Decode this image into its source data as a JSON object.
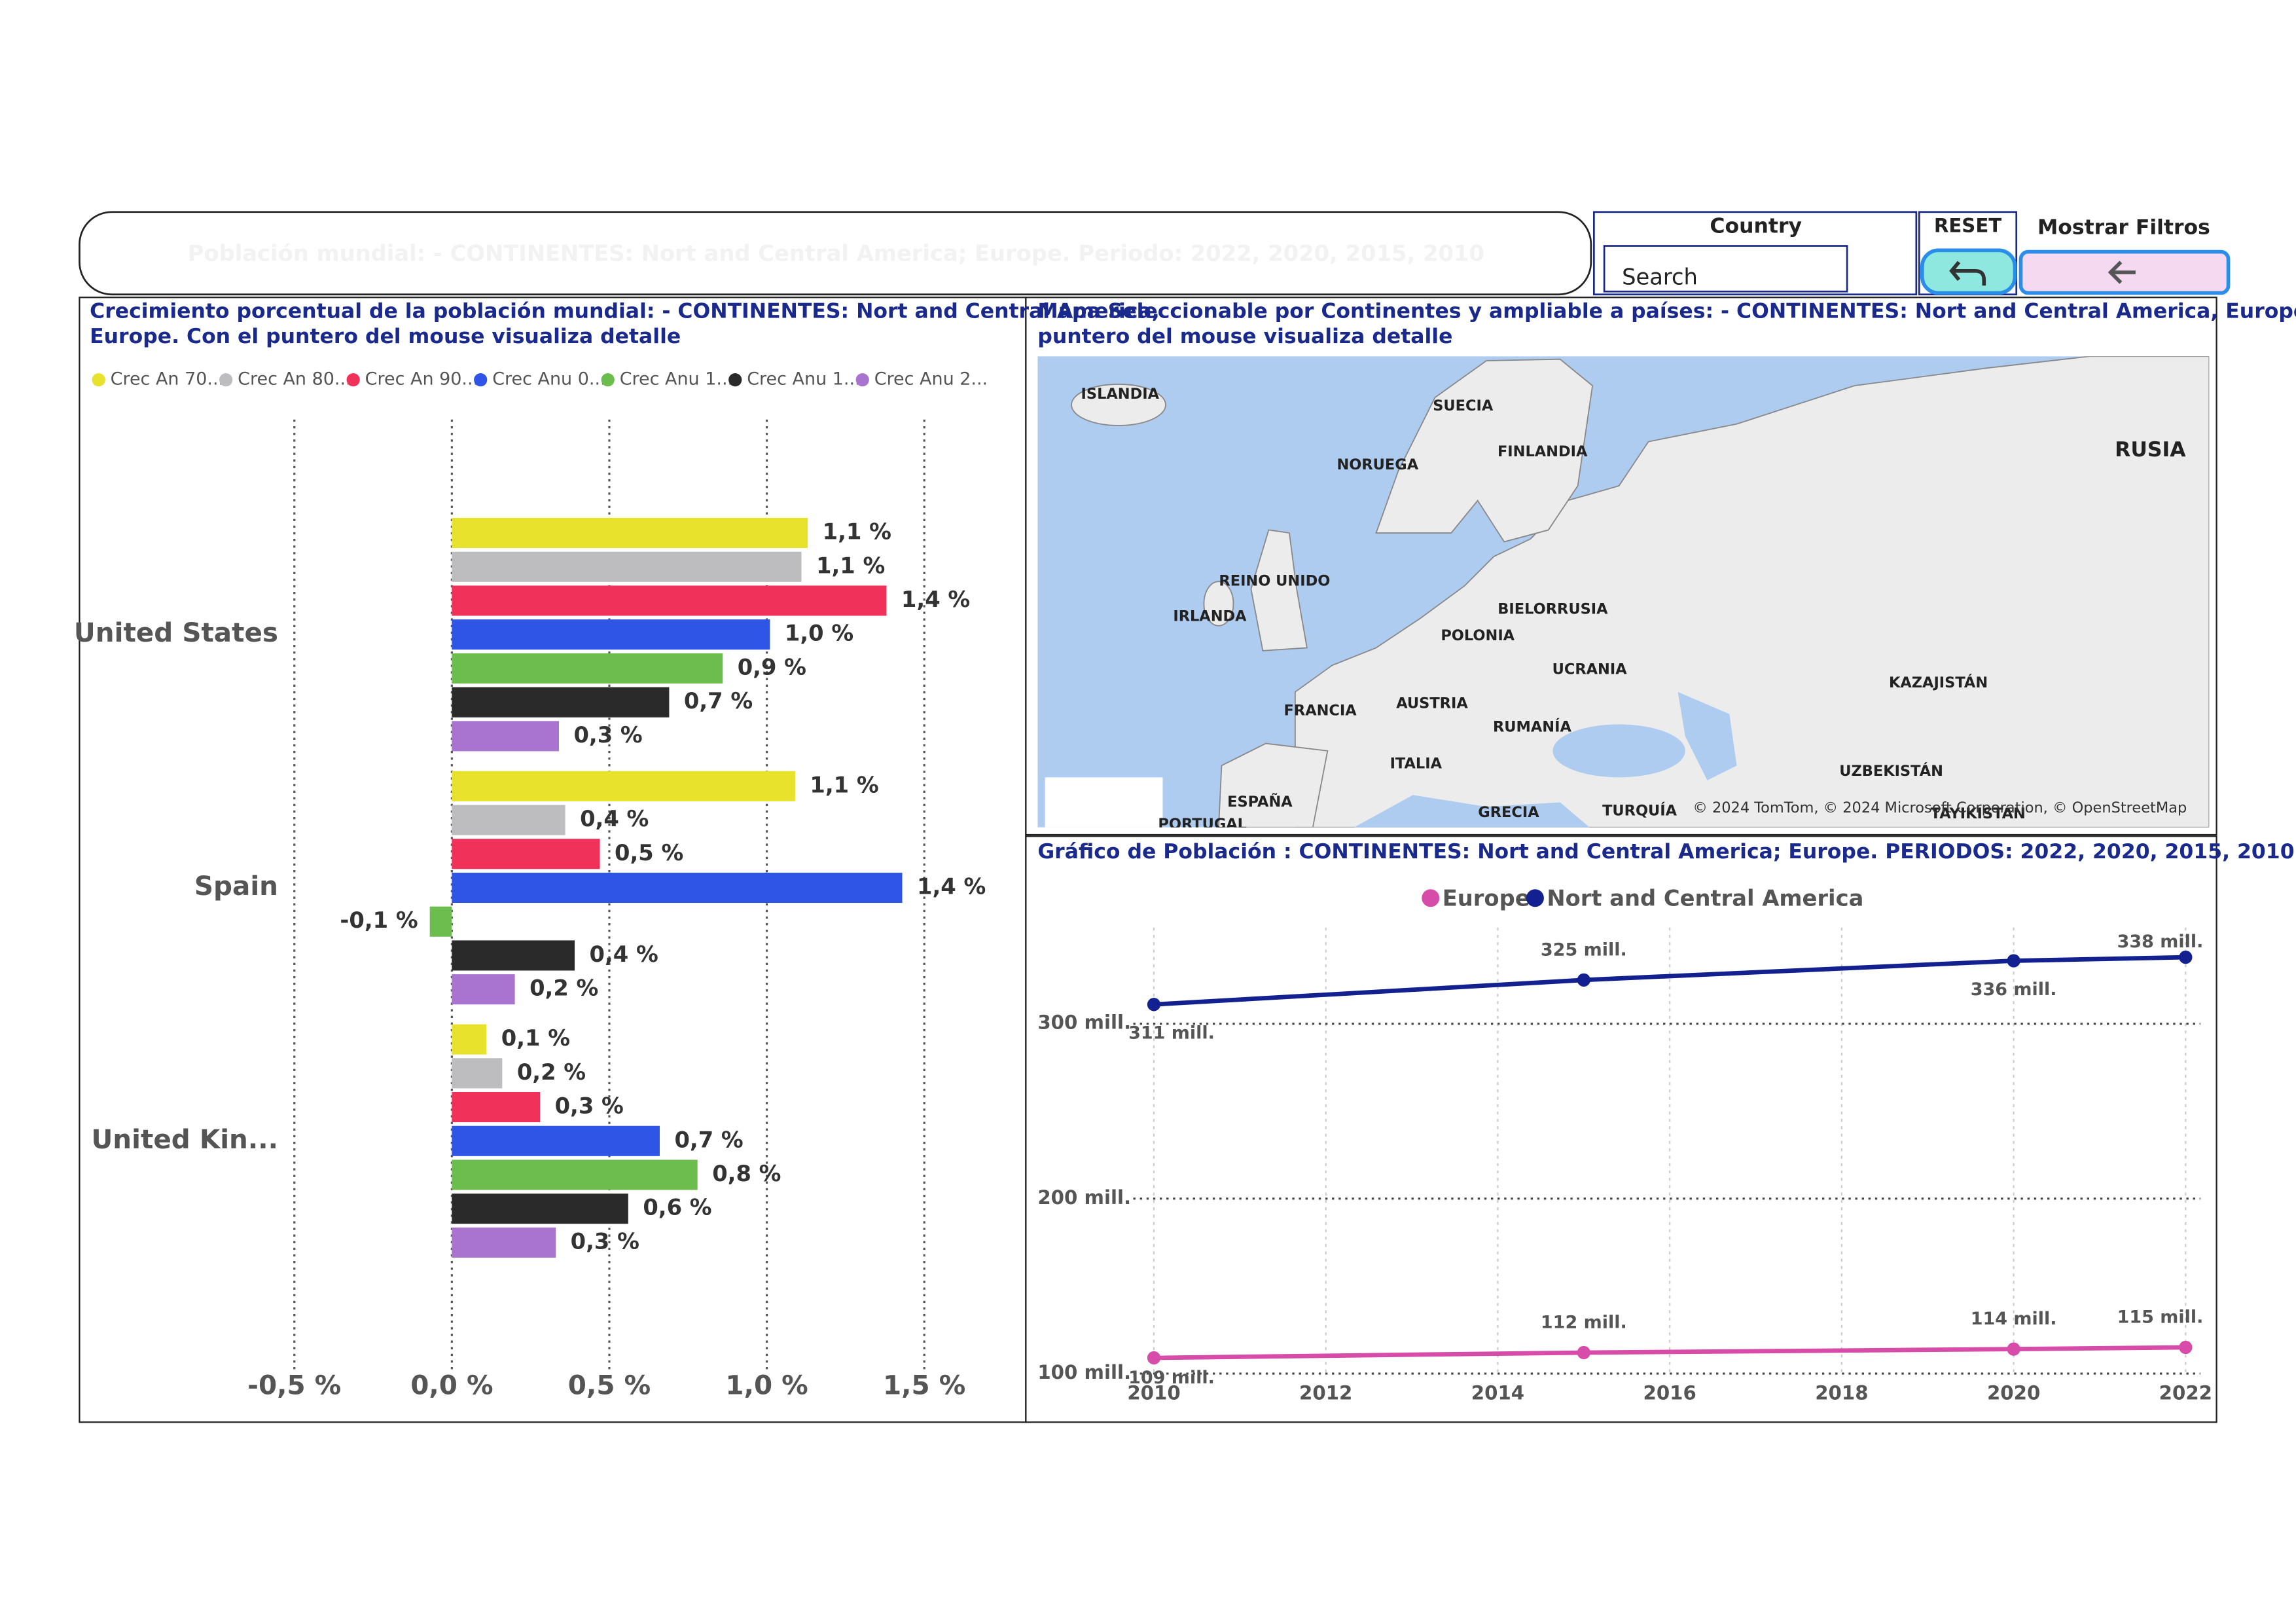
{
  "header": {
    "title": "Población mundial: - CONTINENTES: Nort and Central America; Europe. Periodo: 2022, 2020, 2015, 2010"
  },
  "filters": {
    "country_label": "Country",
    "search_placeholder": "Search",
    "reset_label": "RESET",
    "show_filters_label": "Mostrar Filtros"
  },
  "map": {
    "title": [
      "Mapa Seleccionable por Continentes y ampliable a países: - CONTINENTES: Nort and Central America, Europe.Con el",
      "puntero del mouse visualiza detalle"
    ],
    "labels": [
      "ISLANDIA",
      "SUECIA",
      "FINLANDIA",
      "NORUEGA",
      "RUSIA",
      "REINO UNIDO",
      "IRLANDA",
      "BIELORRUSIA",
      "POLONIA",
      "UCRANIA",
      "KAZAJISTÁN",
      "FRANCIA",
      "AUSTRIA",
      "RUMANÍA",
      "ITALIA",
      "UZBEKISTÁN",
      "ESPAÑA",
      "PORTUGAL",
      "GRECIA",
      "TURQUÍA",
      "TAYIKISTÁN"
    ],
    "attribution": "© 2024 TomTom, © 2024 Microsoft Corporation, © OpenStreetMap"
  },
  "chart_data": [
    {
      "type": "bar",
      "orientation": "horizontal",
      "title": [
        "Crecimiento porcentual de la población mundial: - CONTINENTES: Nort and Central America,",
        "Europe. Con el puntero del mouse visualiza detalle"
      ],
      "categories": [
        "United States",
        "Spain",
        "United Kin..."
      ],
      "series": [
        {
          "name": "Crec An 70...",
          "color": "#e8e22c",
          "values": [
            1.13,
            1.09,
            0.11
          ],
          "value_labels": [
            "1,1 %",
            "1,1 %",
            "0,1 %"
          ]
        },
        {
          "name": "Crec An 80...",
          "color": "#bdbdc0",
          "values": [
            1.11,
            0.36,
            0.16
          ],
          "value_labels": [
            "1,1 %",
            "0,4 %",
            "0,2 %"
          ]
        },
        {
          "name": "Crec An 90...",
          "color": "#f0325a",
          "values": [
            1.38,
            0.47,
            0.28
          ],
          "value_labels": [
            "1,4 %",
            "0,5 %",
            "0,3 %"
          ]
        },
        {
          "name": "Crec Anu 0...",
          "color": "#2f55e6",
          "values": [
            1.01,
            1.43,
            0.66
          ],
          "value_labels": [
            "1,0 %",
            "1,4 %",
            "0,7 %"
          ]
        },
        {
          "name": "Crec Anu 1...",
          "color": "#6bbd4e",
          "values": [
            0.86,
            -0.07,
            0.78
          ],
          "value_labels": [
            "0,9 %",
            "-0,1 %",
            "0,8 %"
          ]
        },
        {
          "name": "Crec Anu 1...",
          "color": "#2a2a2a",
          "values": [
            0.69,
            0.39,
            0.56
          ],
          "value_labels": [
            "0,7 %",
            "0,4 %",
            "0,6 %"
          ]
        },
        {
          "name": "Crec Anu 2...",
          "color": "#a874d0",
          "values": [
            0.34,
            0.2,
            0.33
          ],
          "value_labels": [
            "0,3 %",
            "0,2 %",
            "0,3 %"
          ]
        }
      ],
      "xlim": [
        -0.5,
        1.5
      ],
      "xticks": [
        {
          "value": -0.5,
          "label": "-0,5 %"
        },
        {
          "value": 0,
          "label": "0,0 %"
        },
        {
          "value": 0.5,
          "label": "0,5 %"
        },
        {
          "value": 1,
          "label": "1,0 %"
        },
        {
          "value": 1.5,
          "label": "1,5 %"
        }
      ],
      "grid": true
    },
    {
      "type": "line",
      "title": "Gráfico de Población : CONTINENTES: Nort and Central America; Europe. PERIODOS: 2022, 2020, 2015, 2010",
      "x": [
        2010,
        2015,
        2020,
        2022
      ],
      "series": [
        {
          "name": "Europe",
          "color": "#d64ca8",
          "values": [
            109,
            112,
            114,
            115
          ],
          "value_labels": [
            "109 mill.",
            "112 mill.",
            "114 mill.",
            "115 mill."
          ]
        },
        {
          "name": "Nort and Central America",
          "color": "#13208f",
          "values": [
            311,
            325,
            336,
            338
          ],
          "value_labels": [
            "311 mill.",
            "325 mill.",
            "336 mill.",
            "338 mill."
          ]
        }
      ],
      "xlim": [
        2010,
        2022
      ],
      "xticks": [
        2010,
        2012,
        2014,
        2016,
        2018,
        2020,
        2022
      ],
      "ylim": [
        100,
        355
      ],
      "yticks": [
        {
          "value": 100,
          "label": "100 mill."
        },
        {
          "value": 200,
          "label": "200 mill."
        },
        {
          "value": 300,
          "label": "300 mill."
        }
      ],
      "grid": true
    }
  ]
}
